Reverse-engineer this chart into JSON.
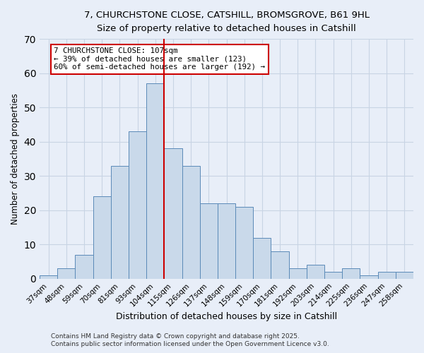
{
  "title_line1": "7, CHURCHSTONE CLOSE, CATSHILL, BROMSGROVE, B61 9HL",
  "title_line2": "Size of property relative to detached houses in Catshill",
  "xlabel": "Distribution of detached houses by size in Catshill",
  "ylabel": "Number of detached properties",
  "bin_labels": [
    "37sqm",
    "48sqm",
    "59sqm",
    "70sqm",
    "81sqm",
    "93sqm",
    "104sqm",
    "115sqm",
    "126sqm",
    "137sqm",
    "148sqm",
    "159sqm",
    "170sqm",
    "181sqm",
    "192sqm",
    "203sqm",
    "214sqm",
    "225sqm",
    "236sqm",
    "247sqm",
    "258sqm"
  ],
  "bar_heights": [
    1,
    3,
    7,
    24,
    33,
    43,
    57,
    38,
    33,
    22,
    22,
    21,
    12,
    8,
    3,
    4,
    2,
    3,
    1,
    2,
    2
  ],
  "bar_color": "#c9d9ea",
  "bar_edge_color": "#5b8ab8",
  "vline_color": "#cc0000",
  "grid_color": "#c8d4e4",
  "background_color": "#e8eef8",
  "annotation_title": "7 CHURCHSTONE CLOSE: 107sqm",
  "annotation_line2": "← 39% of detached houses are smaller (123)",
  "annotation_line3": "60% of semi-detached houses are larger (192) →",
  "annotation_box_color": "#ffffff",
  "annotation_box_edge_color": "#cc0000",
  "footer_line1": "Contains HM Land Registry data © Crown copyright and database right 2025.",
  "footer_line2": "Contains public sector information licensed under the Open Government Licence v3.0.",
  "ylim": [
    0,
    70
  ]
}
